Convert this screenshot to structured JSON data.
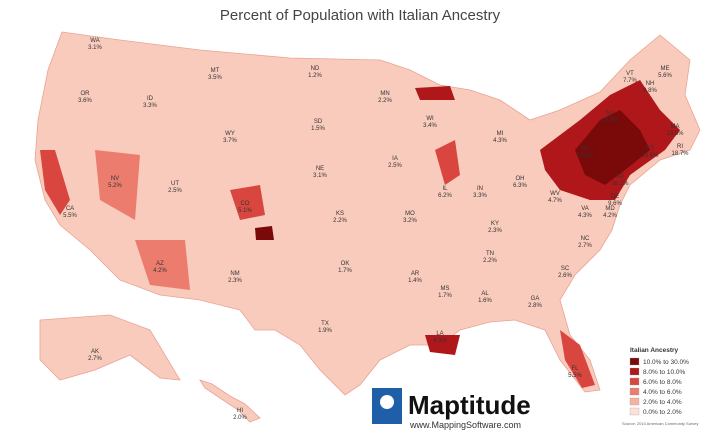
{
  "title": "Percent of Population with Italian Ancestry",
  "states": [
    {
      "abbr": "WA",
      "value": "3.1%"
    },
    {
      "abbr": "OR",
      "value": "3.6%"
    },
    {
      "abbr": "CA",
      "value": "5.5%"
    },
    {
      "abbr": "NV",
      "value": "5.2%"
    },
    {
      "abbr": "ID",
      "value": "3.3%"
    },
    {
      "abbr": "MT",
      "value": "3.5%"
    },
    {
      "abbr": "WY",
      "value": "3.7%"
    },
    {
      "abbr": "UT",
      "value": "2.5%"
    },
    {
      "abbr": "CO",
      "value": "5.1%"
    },
    {
      "abbr": "AZ",
      "value": "4.2%"
    },
    {
      "abbr": "NM",
      "value": "2.3%"
    },
    {
      "abbr": "ND",
      "value": "1.2%"
    },
    {
      "abbr": "SD",
      "value": "1.5%"
    },
    {
      "abbr": "NE",
      "value": "3.1%"
    },
    {
      "abbr": "KS",
      "value": "2.2%"
    },
    {
      "abbr": "OK",
      "value": "1.7%"
    },
    {
      "abbr": "TX",
      "value": "1.9%"
    },
    {
      "abbr": "MN",
      "value": "2.2%"
    },
    {
      "abbr": "IA",
      "value": "2.5%"
    },
    {
      "abbr": "MO",
      "value": "3.2%"
    },
    {
      "abbr": "AR",
      "value": "1.4%"
    },
    {
      "abbr": "LA",
      "value": "4.3%"
    },
    {
      "abbr": "WI",
      "value": "3.4%"
    },
    {
      "abbr": "IL",
      "value": "6.2%"
    },
    {
      "abbr": "MI",
      "value": "4.3%"
    },
    {
      "abbr": "IN",
      "value": "3.3%"
    },
    {
      "abbr": "OH",
      "value": "6.3%"
    },
    {
      "abbr": "KY",
      "value": "2.3%"
    },
    {
      "abbr": "TN",
      "value": "2.2%"
    },
    {
      "abbr": "MS",
      "value": "1.7%"
    },
    {
      "abbr": "AL",
      "value": "1.6%"
    },
    {
      "abbr": "GA",
      "value": "2.8%"
    },
    {
      "abbr": "FL",
      "value": "5.5%"
    },
    {
      "abbr": "SC",
      "value": "2.6%"
    },
    {
      "abbr": "NC",
      "value": "2.7%"
    },
    {
      "abbr": "VA",
      "value": "4.3%"
    },
    {
      "abbr": "WV",
      "value": "4.7%"
    },
    {
      "abbr": "PA",
      "value": "12.8%"
    },
    {
      "abbr": "NY",
      "value": "13.4%"
    },
    {
      "abbr": "VT",
      "value": "7.7%"
    },
    {
      "abbr": "NH",
      "value": "9.8%"
    },
    {
      "abbr": "ME",
      "value": "5.6%"
    },
    {
      "abbr": "MA",
      "value": "13.5%"
    },
    {
      "abbr": "RI",
      "value": "18.7%"
    },
    {
      "abbr": "CT",
      "value": "18.6%"
    },
    {
      "abbr": "NJ",
      "value": "16.1%"
    },
    {
      "abbr": "DE",
      "value": "9.6%"
    },
    {
      "abbr": "MD",
      "value": "4.2%"
    },
    {
      "abbr": "AK",
      "value": "2.7%"
    },
    {
      "abbr": "HI",
      "value": "2.0%"
    }
  ],
  "legend": {
    "title": "Italian Ancestry",
    "entries": [
      {
        "label": "10.0% to 30.0%",
        "color": "#7a0a0a"
      },
      {
        "label": "8.0% to 10.0%",
        "color": "#b0171b"
      },
      {
        "label": "6.0% to 8.0%",
        "color": "#d9463f"
      },
      {
        "label": "4.0% to 6.0%",
        "color": "#ec7d6e"
      },
      {
        "label": "2.0% to 4.0%",
        "color": "#f6b1a2"
      },
      {
        "label": "0.0% to 2.0%",
        "color": "#fde0d6"
      }
    ],
    "source": "Source: 2010 American Community Survey"
  },
  "logo": {
    "name": "Maptitude",
    "url": "www.MappingSoftware.com"
  }
}
